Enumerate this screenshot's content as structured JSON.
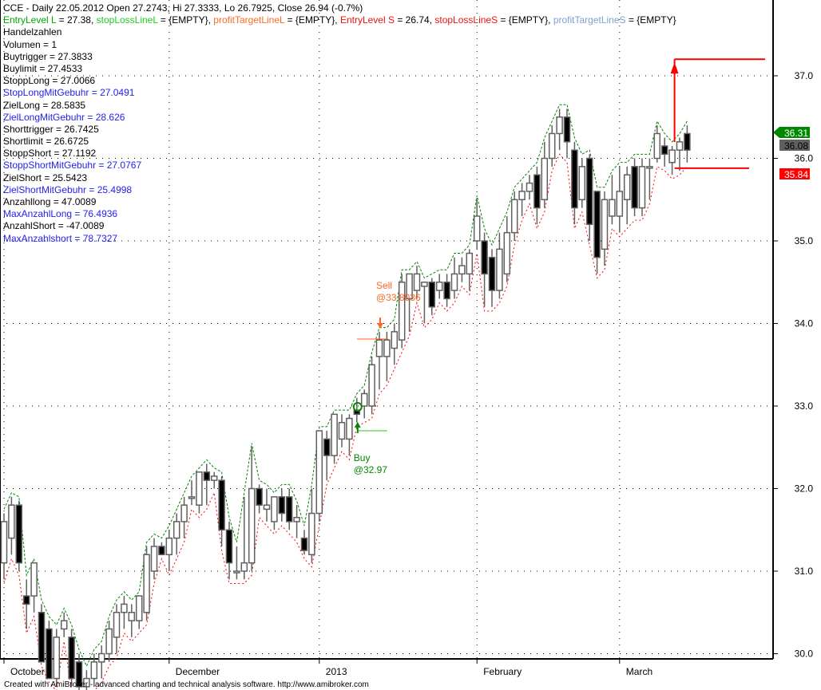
{
  "header": {
    "title_line": "CCE - Daily 22.05.2012 Open 27.2743, Hi 27.3333, Lo 26.7925, Close 26.94 (-0.7%)",
    "params": [
      {
        "label": "EntryLevel L",
        "value": " = 27.38, ",
        "color": "g"
      },
      {
        "label": "stopLossLineL",
        "value": " = {EMPTY}, ",
        "color": "lg"
      },
      {
        "label": "profitTargetLineL",
        "value": " = {EMPTY}, ",
        "color": "o"
      },
      {
        "label": "EntryLevel S",
        "value": " = 26.74, ",
        "color": "r"
      },
      {
        "label": "stopLossLineS",
        "value": " = {EMPTY}, ",
        "color": "r"
      },
      {
        "label": "profitTargetLineS",
        "value": " = {EMPTY}",
        "color": "sb"
      }
    ]
  },
  "stats": [
    {
      "text": "Handelzahlen",
      "color": "k"
    },
    {
      "text": "Volumen = 1",
      "color": "k"
    },
    {
      "text": "Buytrigger = 27.3833",
      "color": "k"
    },
    {
      "text": "Buylimit = 27.4533",
      "color": "k"
    },
    {
      "text": "StoppLong = 27.0066",
      "color": "k"
    },
    {
      "text": "StopLongMitGebuhr = 27.0491",
      "color": "b"
    },
    {
      "text": "ZielLong = 28.5835",
      "color": "k"
    },
    {
      "text": "ZielLongMitGebuhr = 28.626",
      "color": "b"
    },
    {
      "text": "Shorttrigger = 26.7425",
      "color": "k"
    },
    {
      "text": "Shortlimit = 26.6725",
      "color": "k"
    },
    {
      "text": "StoppShort = 27.1192",
      "color": "k"
    },
    {
      "text": "StoppShortMitGebuhr = 27.0767",
      "color": "b"
    },
    {
      "text": "ZielShort = 25.5423",
      "color": "k"
    },
    {
      "text": "ZielShortMitGebuhr = 25.4998",
      "color": "b"
    },
    {
      "text": "Anzahllong = 47.0089",
      "color": "k"
    },
    {
      "text": "MaxAnzahlLong = 76.4936",
      "color": "b"
    },
    {
      "text": "AnzahlShort = -47.0089",
      "color": "k"
    },
    {
      "text": "MaxAnzahlshort = 78.7327",
      "color": "b"
    }
  ],
  "footer": "Created with AmiBroker - advanced charting and technical analysis software. http://www.amibroker.com",
  "chart_data": {
    "type": "candlestick",
    "ylim": [
      29.8,
      37.5
    ],
    "yticks": [
      "30.0",
      "31.0",
      "32.0",
      "33.0",
      "34.0",
      "35.0",
      "36.0",
      "37.0"
    ],
    "grid": true,
    "x_labels": [
      {
        "label": "October",
        "index": 0
      },
      {
        "label": "December",
        "index": 22
      },
      {
        "label": "2013",
        "index": 42
      },
      {
        "label": "February",
        "index": 63
      },
      {
        "label": "March",
        "index": 82
      }
    ],
    "ohlc": [
      [
        31.1,
        31.7,
        30.9,
        31.6
      ],
      [
        31.4,
        31.9,
        31.2,
        31.8
      ],
      [
        31.8,
        31.85,
        31.0,
        31.1
      ],
      [
        30.7,
        30.9,
        30.3,
        30.6
      ],
      [
        30.7,
        31.1,
        30.5,
        31.1
      ],
      [
        30.5,
        30.6,
        29.9,
        29.9
      ],
      [
        30.3,
        30.4,
        29.7,
        29.7
      ],
      [
        29.7,
        30.3,
        29.6,
        30.2
      ],
      [
        30.3,
        30.5,
        30.2,
        30.4
      ],
      [
        30.2,
        30.3,
        29.6,
        29.7
      ],
      [
        29.9,
        30.0,
        29.5,
        29.6
      ],
      [
        29.6,
        29.8,
        29.4,
        29.7
      ],
      [
        29.7,
        30.0,
        29.6,
        29.9
      ],
      [
        29.9,
        30.1,
        29.7,
        30.0
      ],
      [
        30.0,
        30.4,
        29.9,
        30.3
      ],
      [
        30.2,
        30.6,
        30.0,
        30.5
      ],
      [
        30.5,
        30.7,
        30.3,
        30.6
      ],
      [
        30.4,
        30.6,
        30.2,
        30.5
      ],
      [
        30.4,
        30.7,
        30.3,
        30.7
      ],
      [
        30.5,
        31.3,
        30.4,
        31.2
      ],
      [
        31.0,
        31.4,
        30.9,
        31.3
      ],
      [
        31.3,
        31.35,
        31.2,
        31.2
      ],
      [
        31.2,
        31.5,
        31.0,
        31.4
      ],
      [
        31.4,
        31.7,
        31.2,
        31.6
      ],
      [
        31.6,
        31.9,
        31.4,
        31.8
      ],
      [
        31.9,
        32.1,
        31.8,
        31.9
      ],
      [
        31.8,
        32.2,
        31.7,
        32.2
      ],
      [
        32.2,
        32.3,
        31.8,
        32.1
      ],
      [
        32.1,
        32.2,
        32.0,
        32.15
      ],
      [
        32.1,
        32.15,
        31.3,
        31.5
      ],
      [
        31.5,
        31.6,
        30.9,
        31.1
      ],
      [
        31.0,
        31.3,
        30.9,
        31.0
      ],
      [
        31.0,
        31.9,
        30.9,
        31.1
      ],
      [
        31.1,
        32.5,
        31.0,
        32.0
      ],
      [
        32.0,
        32.05,
        31.7,
        31.8
      ],
      [
        31.75,
        32.0,
        31.6,
        31.8
      ],
      [
        31.6,
        31.9,
        31.5,
        31.9
      ],
      [
        31.9,
        32.0,
        31.6,
        31.7
      ],
      [
        31.9,
        32.0,
        31.5,
        31.6
      ],
      [
        31.6,
        31.8,
        31.4,
        31.65
      ],
      [
        31.4,
        31.5,
        31.2,
        31.25
      ],
      [
        31.2,
        32.0,
        31.1,
        31.7
      ],
      [
        31.7,
        32.7,
        31.6,
        32.7
      ],
      [
        32.6,
        32.7,
        32.1,
        32.4
      ],
      [
        32.4,
        32.9,
        32.3,
        32.9
      ],
      [
        32.6,
        32.9,
        32.5,
        32.8
      ],
      [
        32.6,
        32.9,
        32.4,
        32.85
      ],
      [
        32.95,
        33.1,
        32.8,
        32.9
      ],
      [
        33.0,
        33.2,
        32.85,
        33.15
      ],
      [
        33.0,
        33.6,
        32.9,
        33.5
      ],
      [
        33.6,
        33.9,
        33.2,
        33.8
      ],
      [
        33.6,
        33.9,
        33.3,
        33.8
      ],
      [
        33.7,
        34.0,
        33.5,
        33.9
      ],
      [
        33.8,
        34.6,
        33.7,
        34.5
      ],
      [
        34.3,
        34.6,
        33.9,
        34.6
      ],
      [
        34.4,
        34.7,
        34.3,
        34.6
      ],
      [
        34.45,
        34.5,
        34.0,
        34.5
      ],
      [
        34.5,
        34.55,
        34.1,
        34.2
      ],
      [
        34.4,
        34.6,
        34.3,
        34.5
      ],
      [
        34.5,
        34.6,
        34.2,
        34.3
      ],
      [
        34.4,
        34.8,
        34.3,
        34.6
      ],
      [
        34.6,
        34.8,
        34.5,
        34.7
      ],
      [
        34.6,
        34.9,
        34.4,
        34.85
      ],
      [
        35.0,
        35.5,
        34.9,
        35.3
      ],
      [
        35.0,
        35.1,
        34.2,
        34.6
      ],
      [
        34.8,
        34.9,
        34.2,
        34.4
      ],
      [
        34.4,
        35.1,
        34.3,
        34.9
      ],
      [
        34.6,
        35.3,
        34.5,
        35.1
      ],
      [
        35.1,
        35.6,
        35.0,
        35.5
      ],
      [
        35.5,
        35.7,
        35.3,
        35.6
      ],
      [
        35.6,
        35.8,
        35.5,
        35.7
      ],
      [
        35.8,
        35.9,
        35.2,
        35.4
      ],
      [
        35.5,
        36.2,
        35.4,
        36.0
      ],
      [
        36.0,
        36.4,
        35.9,
        36.3
      ],
      [
        36.3,
        36.6,
        36.1,
        36.5
      ],
      [
        36.5,
        36.6,
        36.0,
        36.2
      ],
      [
        36.1,
        36.2,
        35.2,
        35.4
      ],
      [
        35.5,
        36.0,
        35.4,
        35.9
      ],
      [
        36.0,
        36.05,
        35.0,
        35.2
      ],
      [
        35.6,
        35.6,
        34.6,
        34.8
      ],
      [
        34.9,
        35.6,
        34.7,
        35.5
      ],
      [
        35.3,
        35.8,
        35.2,
        35.5
      ],
      [
        35.3,
        35.9,
        35.1,
        35.6
      ],
      [
        35.5,
        35.9,
        35.2,
        35.8
      ],
      [
        35.9,
        36.0,
        35.3,
        35.4
      ],
      [
        35.4,
        36.0,
        35.3,
        35.9
      ],
      [
        35.9,
        36.0,
        35.5,
        35.9
      ],
      [
        36.0,
        36.4,
        35.95,
        36.3
      ],
      [
        36.15,
        36.25,
        35.9,
        36.05
      ],
      [
        35.95,
        36.15,
        35.8,
        36.1
      ],
      [
        36.1,
        36.25,
        35.85,
        36.2
      ],
      [
        36.3,
        36.4,
        35.95,
        36.1
      ]
    ],
    "signals": [
      {
        "type": "buy",
        "index": 47,
        "label": "Buy",
        "price_label": "@32.97",
        "price": 32.97
      },
      {
        "type": "sell",
        "index": 50,
        "label": "Sell",
        "price_label": "@33.8036",
        "price": 33.8036
      }
    ],
    "target_lines": {
      "upper": 37.2,
      "lower": 35.9,
      "start_index": 89
    },
    "price_tags": [
      {
        "value": "36.31",
        "color": "#008800"
      },
      {
        "value": "36.08",
        "color": "#606060"
      },
      {
        "value": "35.84",
        "color": "#ff0000"
      }
    ],
    "colors": {
      "upper_band": "#008800",
      "lower_band": "#ff0000",
      "up_candle": "#ffffff",
      "down_candle": "#000000",
      "wick": "#606060",
      "buy": "#008800",
      "sell": "#ff6622",
      "target": "#ff0000"
    }
  }
}
